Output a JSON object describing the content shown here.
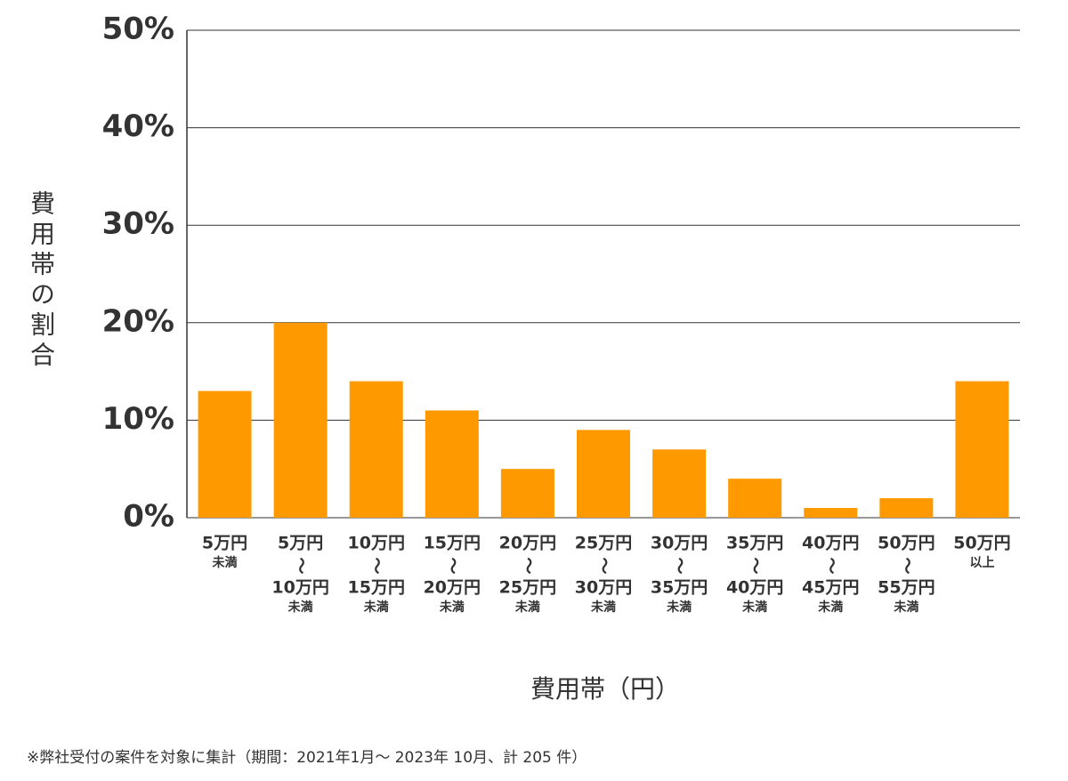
{
  "chart_data": {
    "type": "bar",
    "ylabel": "費用帯の割合",
    "xlabel": "費用帯（円）",
    "footnote": "※弊社受付の案件を対象に集計（期間：2021年1月～ 2023年 10月、計 205 件）",
    "categories": [
      [
        "5万円",
        "未満"
      ],
      [
        "5万円",
        "〜",
        "10万円",
        "未満"
      ],
      [
        "10万円",
        "〜",
        "15万円",
        "未満"
      ],
      [
        "15万円",
        "〜",
        "20万円",
        "未満"
      ],
      [
        "20万円",
        "〜",
        "25万円",
        "未満"
      ],
      [
        "25万円",
        "〜",
        "30万円",
        "未満"
      ],
      [
        "30万円",
        "〜",
        "35万円",
        "未満"
      ],
      [
        "35万円",
        "〜",
        "40万円",
        "未満"
      ],
      [
        "40万円",
        "〜",
        "45万円",
        "未満"
      ],
      [
        "50万円",
        "〜",
        "55万円",
        "未満"
      ],
      [
        "50万円",
        "以上"
      ]
    ],
    "values": [
      13,
      20,
      14,
      11,
      5,
      9,
      7,
      4,
      1,
      2,
      14
    ],
    "color": "#ff9900",
    "ylim": [
      0,
      50
    ],
    "yticks": [
      {
        "value": 0,
        "label": "0%"
      },
      {
        "value": 10,
        "label": "10%"
      },
      {
        "value": 20,
        "label": "20%"
      },
      {
        "value": 30,
        "label": "30%"
      },
      {
        "value": 40,
        "label": "40%"
      },
      {
        "value": 50,
        "label": "50%"
      }
    ],
    "grid": true
  }
}
